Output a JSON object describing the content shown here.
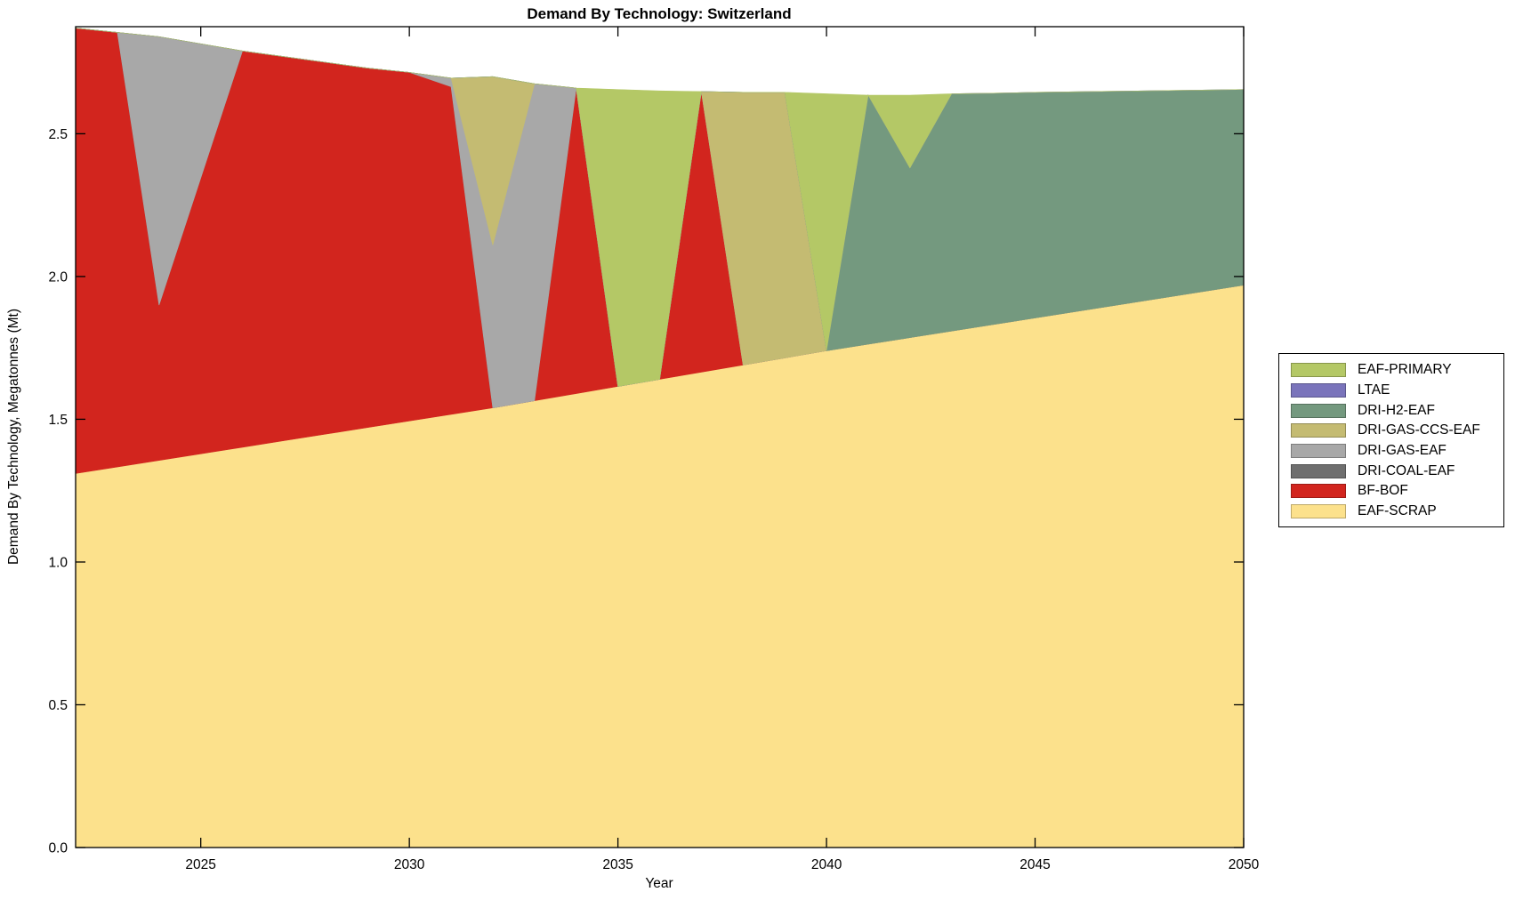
{
  "title": "Demand By Technology: Switzerland",
  "axes": {
    "xlabel": "Year",
    "ylabel": "Demand By Technology, Megatonnes (Mt)",
    "xlim": [
      2022,
      2050
    ],
    "ylim": [
      0,
      2.875
    ],
    "xticks": [
      2025,
      2030,
      2035,
      2040,
      2045,
      2050
    ],
    "xtick_labels": [
      "2025",
      "2030",
      "2035",
      "2040",
      "2045",
      "2050"
    ],
    "yticks": [
      0,
      0.5,
      1.0,
      1.5,
      2.0,
      2.5
    ],
    "ytick_labels": [
      "0.0",
      "0.5",
      "1.0",
      "1.5",
      "2.0",
      "2.5"
    ],
    "grid": false
  },
  "chart_data": {
    "type": "area",
    "stacked": true,
    "x": [
      2022,
      2023,
      2024,
      2025,
      2026,
      2027,
      2028,
      2029,
      2030,
      2031,
      2032,
      2033,
      2034,
      2035,
      2036,
      2037,
      2038,
      2039,
      2040,
      2041,
      2042,
      2043,
      2044,
      2045,
      2046,
      2047,
      2048,
      2049,
      2050
    ],
    "series": [
      {
        "name": "EAF-SCRAP",
        "color": "#fce18c",
        "values": [
          1.31,
          1.333,
          1.356,
          1.379,
          1.402,
          1.425,
          1.448,
          1.471,
          1.494,
          1.517,
          1.54,
          1.565,
          1.59,
          1.615,
          1.64,
          1.665,
          1.69,
          1.715,
          1.74,
          1.763,
          1.786,
          1.809,
          1.832,
          1.855,
          1.878,
          1.901,
          1.924,
          1.947,
          1.97
        ]
      },
      {
        "name": "BF-BOF",
        "color": "#d2251e",
        "values": [
          1.56,
          1.522,
          0.544,
          0.966,
          1.388,
          1.345,
          1.302,
          1.259,
          1.221,
          1.148,
          0,
          0,
          1.07,
          0,
          0,
          0.983,
          0,
          0,
          0,
          0,
          0,
          0,
          0,
          0,
          0,
          0,
          0,
          0,
          0
        ]
      },
      {
        "name": "DRI-COAL-EAF",
        "color": "#6f6f6f",
        "values": [
          0,
          0,
          0,
          0,
          0,
          0,
          0,
          0,
          0,
          0,
          0,
          0,
          0,
          0,
          0,
          0,
          0,
          0,
          0,
          0,
          0,
          0,
          0,
          0,
          0,
          0,
          0,
          0,
          0
        ]
      },
      {
        "name": "DRI-GAS-EAF",
        "color": "#a8a8a8",
        "values": [
          0,
          0,
          0.94,
          0.47,
          0,
          0,
          0,
          0,
          0,
          0.03,
          0.57,
          1.11,
          0,
          0,
          0,
          0,
          0,
          0,
          0,
          0,
          0,
          0,
          0,
          0,
          0,
          0,
          0,
          0,
          0
        ]
      },
      {
        "name": "DRI-GAS-CCS-EAF",
        "color": "#c4bb72",
        "values": [
          0,
          0,
          0,
          0,
          0,
          0,
          0,
          0,
          0,
          0,
          0.59,
          0,
          0,
          0,
          0,
          0,
          0.955,
          0.93,
          0,
          0,
          0,
          0,
          0,
          0,
          0,
          0,
          0,
          0,
          0
        ]
      },
      {
        "name": "DRI-H2-EAF",
        "color": "#74997f",
        "values": [
          0,
          0,
          0,
          0,
          0,
          0,
          0,
          0,
          0,
          0,
          0,
          0,
          0,
          0,
          0,
          0,
          0,
          0,
          0,
          0.872,
          0.594,
          0.831,
          0.81,
          0.79,
          0.769,
          0.748,
          0.727,
          0.706,
          0.685
        ]
      },
      {
        "name": "LTAE",
        "color": "#7a74bb",
        "values": [
          0,
          0,
          0,
          0,
          0,
          0,
          0,
          0,
          0,
          0,
          0,
          0,
          0,
          0,
          0,
          0,
          0,
          0,
          0,
          0,
          0,
          0,
          0,
          0,
          0,
          0,
          0,
          0,
          0
        ]
      },
      {
        "name": "EAF-PRIMARY",
        "color": "#b4c866",
        "values": [
          0,
          0,
          0,
          0,
          0,
          0,
          0,
          0,
          0,
          0,
          0,
          0,
          0,
          1.04,
          1.01,
          0,
          0,
          0,
          0.9,
          0,
          0.255,
          0,
          0,
          0,
          0,
          0,
          0,
          0,
          0
        ]
      }
    ],
    "legend": {
      "position": "right-outside",
      "entries_top_to_bottom": [
        "EAF-PRIMARY",
        "LTAE",
        "DRI-H2-EAF",
        "DRI-GAS-CCS-EAF",
        "DRI-GAS-EAF",
        "DRI-COAL-EAF",
        "BF-BOF",
        "EAF-SCRAP"
      ]
    }
  },
  "style_colors": {
    "axis": "#000000",
    "background": "#ffffff"
  }
}
